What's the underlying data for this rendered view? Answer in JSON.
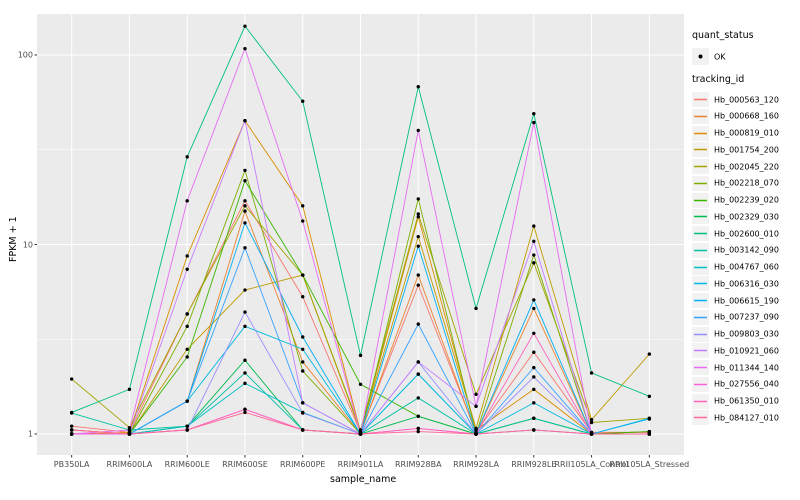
{
  "chart_data": {
    "type": "line",
    "title": "",
    "xlabel": "sample_name",
    "ylabel": "FPKM + 1",
    "y_scale": "log10",
    "y_ticks": [
      1,
      10,
      100
    ],
    "y_tick_labels": [
      "1",
      "10",
      "100"
    ],
    "y_minor_breaks": [
      3.1623,
      31.623
    ],
    "ylim": [
      1,
      160
    ],
    "grid": "on",
    "legend_position": "right",
    "point_marker_color": "#000000",
    "categories": [
      "PB350LA",
      "RRIM600LA",
      "RRIM600LE",
      "RRIM600SE",
      "RRIM600PE",
      "RRIM901LA",
      "RRIM928BA",
      "RRIM928LA",
      "RRIM928LE",
      "RRII105LA_Control",
      "RRII105LA_Stressed"
    ],
    "series": [
      {
        "name": "Hb_000563_120",
        "color": "#F8766D",
        "values": [
          1.1,
          1.02,
          4.3,
          17,
          5.3,
          1.02,
          6.1,
          1.02,
          2.7,
          1.02,
          1.02
        ]
      },
      {
        "name": "Hb_000668_160",
        "color": "#EA8331",
        "values": [
          1.05,
          1.0,
          1.49,
          15,
          2.4,
          1.0,
          6.9,
          1.0,
          4.6,
          1.0,
          1.03
        ]
      },
      {
        "name": "Hb_000819_010",
        "color": "#D89000",
        "values": [
          1.0,
          1.02,
          8.7,
          45,
          16,
          1.02,
          14,
          1.05,
          1.72,
          1.0,
          1.0
        ]
      },
      {
        "name": "Hb_001754_200",
        "color": "#C09B00",
        "values": [
          1.05,
          1.0,
          2.8,
          5.75,
          6.9,
          1.03,
          11,
          1.07,
          12.5,
          1.19,
          2.64
        ]
      },
      {
        "name": "Hb_002045_220",
        "color": "#A3A500",
        "values": [
          1.95,
          1.08,
          4.3,
          16,
          6.9,
          1.05,
          14.5,
          1.62,
          8.0,
          1.15,
          1.21
        ]
      },
      {
        "name": "Hb_002218_070",
        "color": "#7CAE00",
        "values": [
          1.0,
          1.0,
          3.7,
          24.6,
          2.15,
          1.0,
          17.4,
          1.0,
          8.8,
          1.0,
          1.0
        ]
      },
      {
        "name": "Hb_002239_020",
        "color": "#39B600",
        "values": [
          1.0,
          1.0,
          2.55,
          21.7,
          6.9,
          1.83,
          1.24,
          1.0,
          1.21,
          1.0,
          1.03
        ]
      },
      {
        "name": "Hb_002329_030",
        "color": "#00BB4E",
        "values": [
          1.0,
          1.0,
          1.1,
          2.45,
          1.05,
          1.0,
          1.24,
          1.0,
          1.21,
          1.0,
          1.0
        ]
      },
      {
        "name": "Hb_002600_010",
        "color": "#00BF7D",
        "values": [
          1.3,
          1.72,
          29,
          142,
          57,
          2.6,
          68,
          4.6,
          49,
          2.1,
          1.58
        ]
      },
      {
        "name": "Hb_003142_090",
        "color": "#00C1A3",
        "values": [
          1.29,
          1.05,
          1.1,
          2.1,
          1.05,
          1.0,
          1.55,
          1.0,
          1.21,
          1.0,
          1.0
        ]
      },
      {
        "name": "Hb_004767_060",
        "color": "#00BFC4",
        "values": [
          1.0,
          1.0,
          1.1,
          1.85,
          1.3,
          1.0,
          2.07,
          1.0,
          1.05,
          1.0,
          1.0
        ]
      },
      {
        "name": "Hb_006316_030",
        "color": "#00BAE0",
        "values": [
          1.0,
          1.0,
          1.49,
          3.7,
          2.8,
          1.0,
          2.07,
          1.0,
          1.46,
          1.0,
          1.21
        ]
      },
      {
        "name": "Hb_006615_190",
        "color": "#00B0F6",
        "values": [
          1.0,
          1.0,
          1.49,
          13,
          3.25,
          1.0,
          9.8,
          1.0,
          5.1,
          1.0,
          1.2
        ]
      },
      {
        "name": "Hb_007237_090",
        "color": "#35A2FF",
        "values": [
          1.0,
          1.0,
          1.49,
          9.6,
          1.46,
          1.0,
          3.8,
          1.0,
          2.24,
          1.0,
          1.0
        ]
      },
      {
        "name": "Hb_009803_030",
        "color": "#9590FF",
        "values": [
          1.0,
          1.0,
          1.05,
          4.4,
          1.29,
          1.0,
          2.4,
          1.0,
          2.0,
          1.0,
          1.0
        ]
      },
      {
        "name": "Hb_010921_060",
        "color": "#C77CFF",
        "values": [
          1.0,
          1.0,
          7.4,
          45,
          1.46,
          1.0,
          2.4,
          1.4,
          10.4,
          1.0,
          1.0
        ]
      },
      {
        "name": "Hb_011344_140",
        "color": "#E76BF3",
        "values": [
          1.0,
          1.05,
          17,
          108,
          13.3,
          1.0,
          40,
          1.4,
          44,
          1.0,
          1.0
        ]
      },
      {
        "name": "Hb_027556_040",
        "color": "#FA62DB",
        "values": [
          1.0,
          1.0,
          1.05,
          1.35,
          1.05,
          1.0,
          1.07,
          1.0,
          1.05,
          1.0,
          1.0
        ]
      },
      {
        "name": "Hb_061350_010",
        "color": "#FF62BC",
        "values": [
          1.05,
          1.0,
          1.05,
          1.35,
          1.05,
          1.0,
          1.07,
          1.0,
          3.4,
          1.0,
          1.0
        ]
      },
      {
        "name": "Hb_084127_010",
        "color": "#FF6A98",
        "values": [
          1.05,
          1.0,
          1.05,
          1.3,
          1.05,
          1.0,
          1.03,
          1.0,
          1.05,
          1.0,
          1.0
        ]
      }
    ]
  },
  "legend": {
    "quant_status": {
      "title": "quant_status",
      "ok_label": "OK"
    },
    "tracking": {
      "title": "tracking_id"
    }
  },
  "colors": {
    "panel_bg": "#EBEBEB",
    "grid": "#FFFFFF",
    "key_bg": "#F2F2F2",
    "tick_text": "#4D4D4D",
    "tick_mark": "#333333"
  }
}
